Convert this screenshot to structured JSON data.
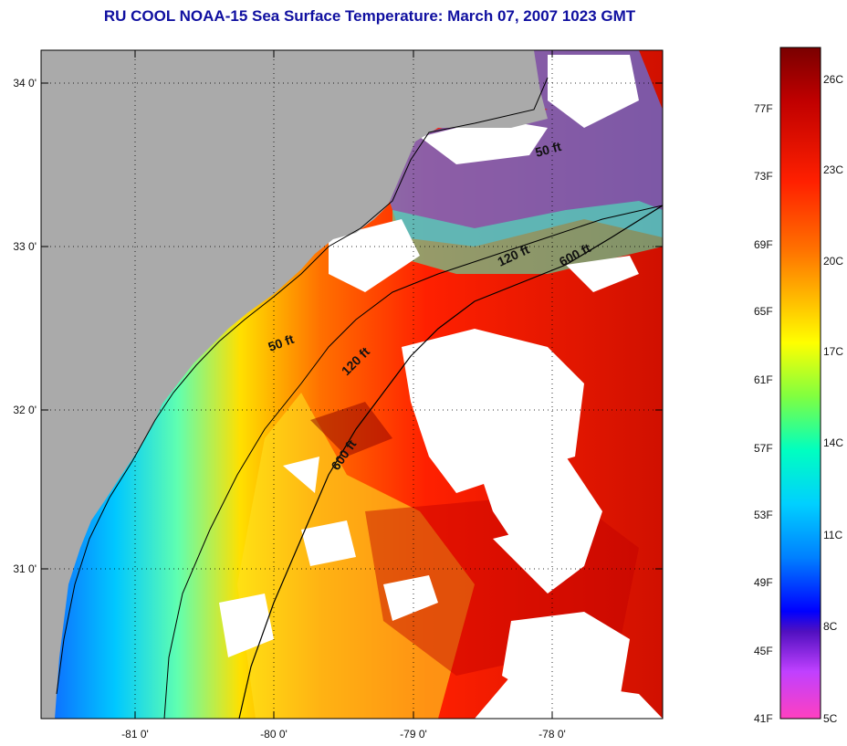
{
  "title": "RU COOL  NOAA-15  Sea Surface Temperature:  March 07, 2007 1023 GMT",
  "map": {
    "lat_labels": [
      "34 0'",
      "33 0'",
      "32 0'",
      "31 0'"
    ],
    "lon_labels": [
      "-81 0'",
      "-80 0'",
      "-79 0'",
      "-78 0'"
    ],
    "contour_labels": [
      "50 ft",
      "120 ft",
      "600 ft",
      "50 ft",
      "120 ft",
      "600 ft"
    ]
  },
  "colorbar": {
    "fahrenheit_labels": [
      "77F",
      "73F",
      "69F",
      "65F",
      "61F",
      "57F",
      "53F",
      "49F",
      "45F",
      "41F"
    ],
    "celsius_labels": [
      "26C",
      "23C",
      "20C",
      "17C",
      "14C",
      "11C",
      "8C",
      "5C"
    ],
    "colors": [
      "#8b0000",
      "#d40000",
      "#ff3000",
      "#ff8000",
      "#ffc000",
      "#ffff00",
      "#a0ff40",
      "#00ffb0",
      "#00e0ff",
      "#00a0ff",
      "#0040ff",
      "#0000d0",
      "#6000c0",
      "#c030ff",
      "#ff40c0"
    ]
  },
  "legend_colors": {
    "land": "#aaaaaa",
    "cloud": "#ffffff"
  }
}
